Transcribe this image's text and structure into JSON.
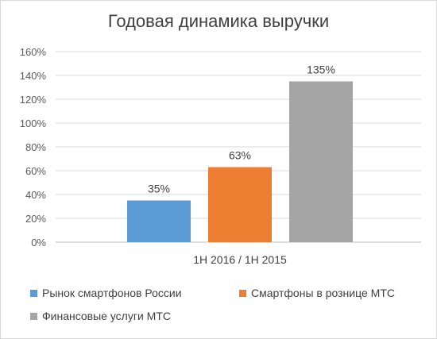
{
  "chart_data": {
    "type": "bar",
    "title": "Годовая динамика выручки",
    "categories": [
      "1H 2016 / 1H 2015"
    ],
    "series": [
      {
        "name": "Рынок смартфонов России",
        "values": [
          35
        ],
        "label": "35%",
        "color": "#5b9bd5"
      },
      {
        "name": "Смартфоны в рознице МТС",
        "values": [
          63
        ],
        "label": "63%",
        "color": "#ed7d31"
      },
      {
        "name": "Финансовые услуги МТС",
        "values": [
          135
        ],
        "label": "135%",
        "color": "#a5a5a5"
      }
    ],
    "ylim": [
      0,
      160
    ],
    "yticks": [
      "0%",
      "20%",
      "40%",
      "60%",
      "80%",
      "100%",
      "120%",
      "140%",
      "160%"
    ],
    "grid": true,
    "legend_position": "bottom"
  }
}
